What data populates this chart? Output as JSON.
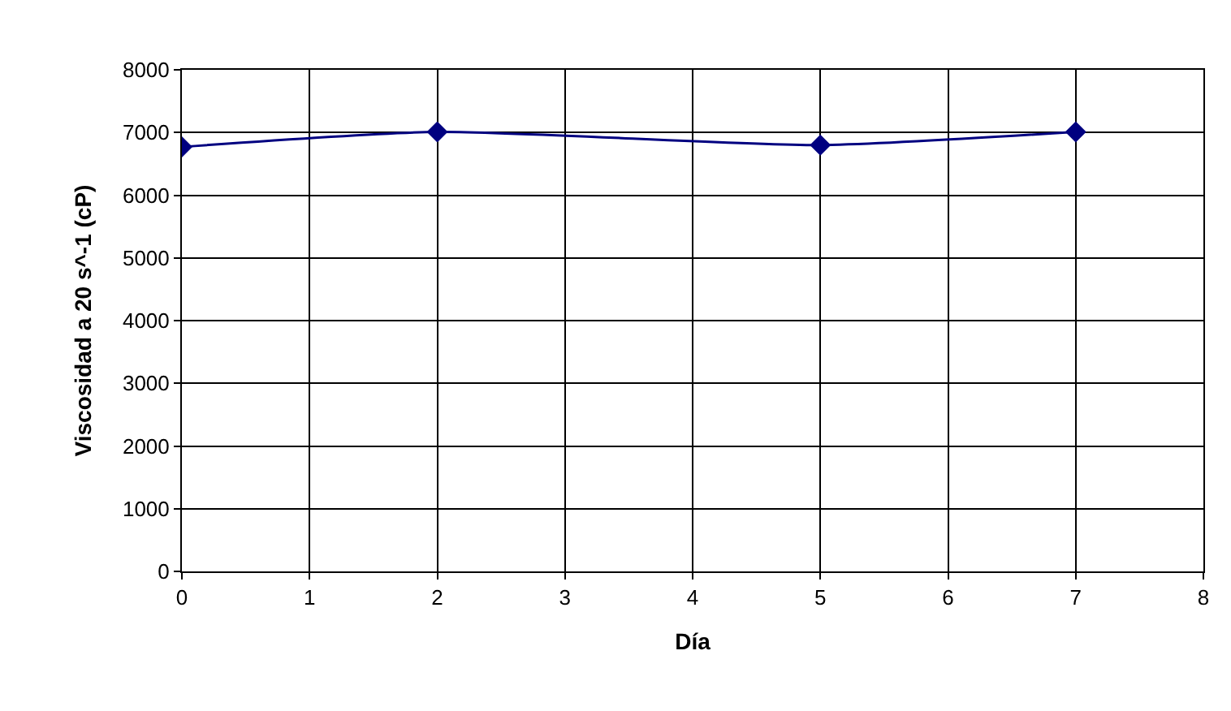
{
  "chart_data": {
    "type": "line",
    "xlabel": "Día",
    "ylabel": "Viscosidad a 20 s^-1 (cP)",
    "x": [
      0,
      2,
      5,
      7
    ],
    "series": [
      {
        "color": "#000080",
        "values": [
          6770,
          7010,
          6800,
          7010
        ]
      }
    ],
    "xlim": [
      0,
      8
    ],
    "xticks": [
      0,
      1,
      2,
      3,
      4,
      5,
      6,
      7,
      8
    ],
    "ylim": [
      0,
      8000
    ],
    "yticks": [
      0,
      1000,
      2000,
      3000,
      4000,
      5000,
      6000,
      7000,
      8000
    ],
    "grid": true,
    "marker": "diamond",
    "line_style": "solid"
  }
}
